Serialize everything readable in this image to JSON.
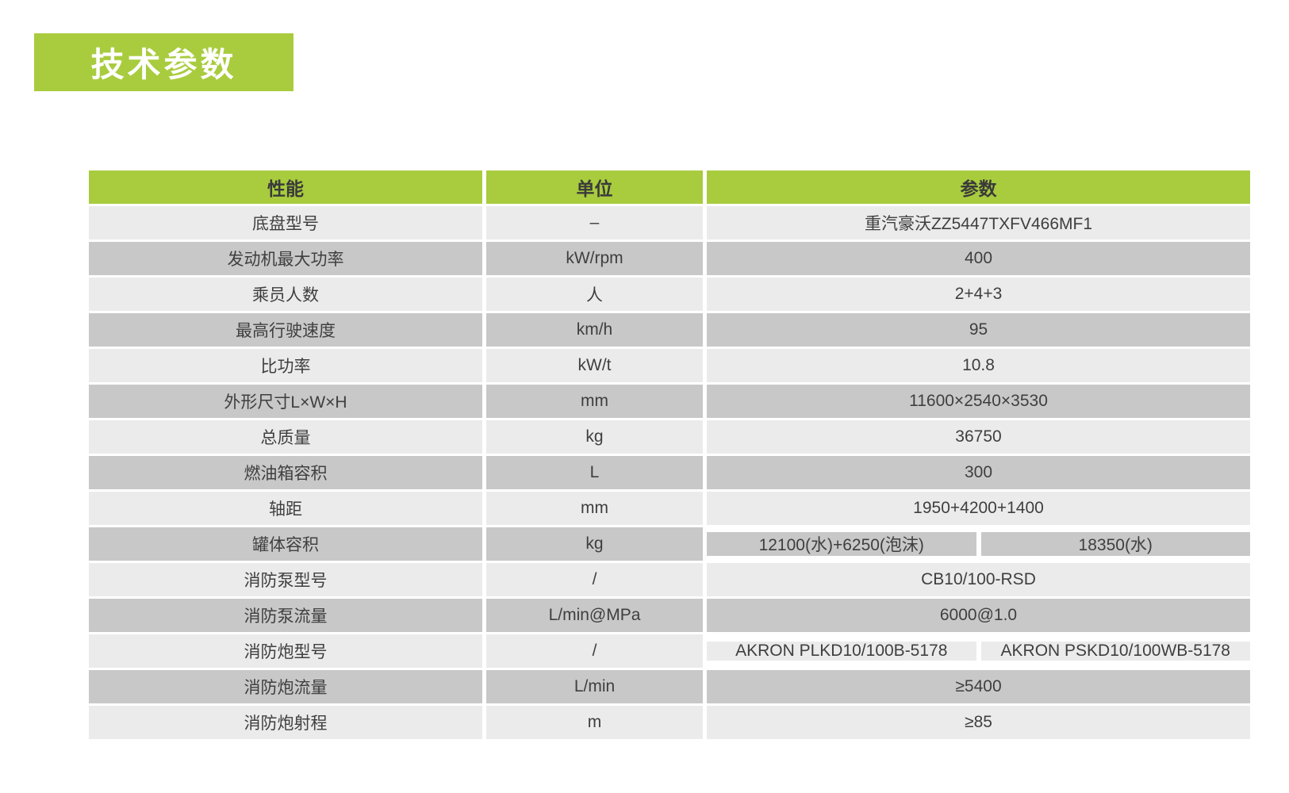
{
  "page_title": {
    "label": "技术参数"
  },
  "colors": {
    "accent_green": "#a8cc3e",
    "row_light": "#ebebeb",
    "row_dark": "#c8c8c8",
    "text_dark": "#3f3f3f",
    "title_text": "#ffffff"
  },
  "table": {
    "headers": {
      "performance": "性能",
      "unit": "单位",
      "parameter": "参数"
    },
    "rows": [
      {
        "label": "底盘型号",
        "unit": "–",
        "value": "重汽豪沃ZZ5447TXFV466MF1"
      },
      {
        "label": "发动机最大功率",
        "unit": "kW/rpm",
        "value": "400"
      },
      {
        "label": "乘员人数",
        "unit": "人",
        "value": "2+4+3"
      },
      {
        "label": "最高行驶速度",
        "unit": "km/h",
        "value": "95"
      },
      {
        "label": "比功率",
        "unit": "kW/t",
        "value": "10.8"
      },
      {
        "label": "外形尺寸L×W×H",
        "unit": "mm",
        "value": "11600×2540×3530"
      },
      {
        "label": "总质量",
        "unit": "kg",
        "value": "36750"
      },
      {
        "label": "燃油箱容积",
        "unit": "L",
        "value": "300"
      },
      {
        "label": "轴距",
        "unit": "mm",
        "value": "1950+4200+1400"
      },
      {
        "label": "罐体容积",
        "unit": "kg",
        "value": "12100(水)+6250(泡沫)",
        "value2": "18350(水)"
      },
      {
        "label": "消防泵型号",
        "unit": "/",
        "value": "CB10/100-RSD"
      },
      {
        "label": "消防泵流量",
        "unit": "L/min@MPa",
        "value": "6000@1.0"
      },
      {
        "label": "消防炮型号",
        "unit": "/",
        "value": "AKRON PLKD10/100B-5178",
        "value2": "AKRON PSKD10/100WB-5178"
      },
      {
        "label": "消防炮流量",
        "unit": "L/min",
        "value": "≥5400"
      },
      {
        "label": "消防炮射程",
        "unit": "m",
        "value": "≥85"
      }
    ]
  }
}
